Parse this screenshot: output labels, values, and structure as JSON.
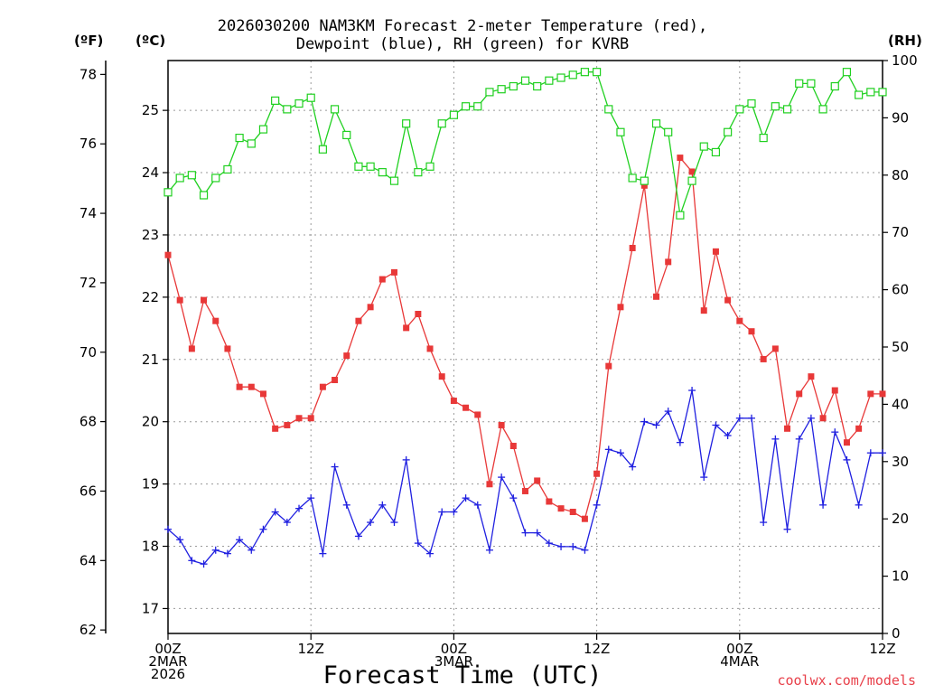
{
  "chart_data": {
    "type": "line",
    "title_line1": "2026030200 NAM3KM Forecast 2-meter Temperature (red),",
    "title_line2": "Dewpoint (blue), RH (green) for KVRB",
    "xlabel": "Forecast Time (UTC)",
    "credit": "coolwx.com/models",
    "units": {
      "fahrenheit": "(ºF)",
      "celsius": "(ºC)",
      "rh": "(RH)"
    },
    "x_range_hours": [
      0,
      60
    ],
    "x_step_hours": 1,
    "x_ticks": [
      {
        "hour": 0,
        "lines": [
          "00Z",
          "2MAR",
          "2026"
        ]
      },
      {
        "hour": 12,
        "lines": [
          "12Z"
        ]
      },
      {
        "hour": 24,
        "lines": [
          "00Z",
          "3MAR"
        ]
      },
      {
        "hour": 36,
        "lines": [
          "12Z"
        ]
      },
      {
        "hour": 48,
        "lines": [
          "00Z",
          "4MAR"
        ]
      },
      {
        "hour": 60,
        "lines": [
          "12Z"
        ]
      }
    ],
    "axes": {
      "fahrenheit": {
        "ylim": [
          61.9,
          78.4
        ],
        "ticks": [
          "78",
          "76",
          "74",
          "72",
          "70",
          "68",
          "66",
          "64",
          "62"
        ]
      },
      "celsius": {
        "ylim": [
          16.6,
          25.8
        ],
        "ticks": [
          "25",
          "24",
          "23",
          "22",
          "21",
          "20",
          "19",
          "18",
          "17"
        ]
      },
      "rh": {
        "ylim": [
          0,
          100
        ],
        "ticks": [
          "100",
          "90",
          "80",
          "70",
          "60",
          "50",
          "40",
          "30",
          "20",
          "10",
          "0"
        ]
      }
    },
    "series": [
      {
        "name": "2-meter Temperature",
        "color": "#e83838",
        "units": "F",
        "marker": "filled-square",
        "values": [
          72.8,
          71.5,
          70.1,
          71.5,
          70.9,
          70.1,
          69.0,
          69.0,
          68.8,
          67.8,
          67.9,
          68.1,
          68.1,
          69.0,
          69.2,
          69.9,
          70.9,
          71.3,
          72.1,
          72.3,
          70.7,
          71.1,
          70.1,
          69.3,
          68.6,
          68.4,
          68.2,
          66.2,
          67.9,
          67.3,
          66.0,
          66.3,
          65.7,
          65.5,
          65.4,
          65.2,
          66.5,
          69.6,
          71.3,
          73.0,
          74.8,
          71.6,
          72.6,
          75.6,
          75.2,
          71.2,
          72.9,
          71.5,
          70.9,
          70.6,
          69.8,
          70.1,
          67.8,
          68.8,
          69.3,
          68.1,
          68.9,
          67.4,
          67.8,
          68.8,
          68.8
        ]
      },
      {
        "name": "Dewpoint",
        "color": "#2020e0",
        "units": "F",
        "marker": "plus",
        "values": [
          64.9,
          64.6,
          64.0,
          63.9,
          64.3,
          64.2,
          64.6,
          64.3,
          64.9,
          65.4,
          65.1,
          65.5,
          65.8,
          64.2,
          66.7,
          65.6,
          64.7,
          65.1,
          65.6,
          65.1,
          66.9,
          64.5,
          64.2,
          65.4,
          65.4,
          65.8,
          65.6,
          64.3,
          66.4,
          65.8,
          64.8,
          64.8,
          64.5,
          64.4,
          64.4,
          64.3,
          65.6,
          67.2,
          67.1,
          66.7,
          68.0,
          67.9,
          68.3,
          67.4,
          68.9,
          66.4,
          67.9,
          67.6,
          68.1,
          68.1,
          65.1,
          67.5,
          64.9,
          67.5,
          68.1,
          65.6,
          67.7,
          66.9,
          65.6,
          67.1,
          67.1
        ]
      },
      {
        "name": "RH",
        "color": "#20d020",
        "units": "%",
        "marker": "open-square",
        "values": [
          77,
          79.5,
          80,
          76.5,
          79.5,
          81,
          86.5,
          85.5,
          88,
          93,
          91.5,
          92.5,
          93.5,
          84.5,
          91.5,
          87,
          81.5,
          81.5,
          80.5,
          79,
          89,
          80.5,
          81.5,
          89,
          90.5,
          92,
          92,
          94.5,
          95,
          95.5,
          96.5,
          95.5,
          96.5,
          97,
          97.5,
          98,
          98,
          91.5,
          87.5,
          79.5,
          79,
          89,
          87.5,
          73,
          79,
          85,
          84,
          87.5,
          91.5,
          92.5,
          86.5,
          92,
          91.5,
          96,
          96,
          91.5,
          95.5,
          98,
          94,
          94.5,
          94.5
        ]
      }
    ]
  }
}
